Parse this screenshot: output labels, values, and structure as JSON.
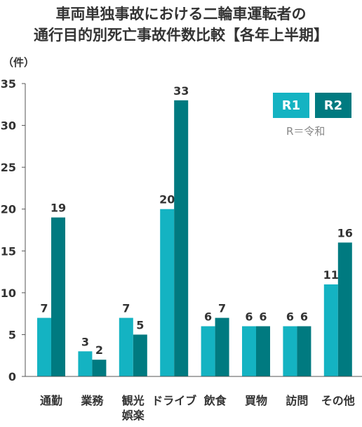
{
  "title_lines": [
    "車両単独事故における二輪車運転者の",
    "通行目的別死亡事故件数比較【各年上半期】"
  ],
  "unit": "（件）",
  "legend_note": "R＝令和",
  "colors": {
    "R1": "#14b3c2",
    "R2": "#007a80",
    "axis": "#555555"
  },
  "chart_data": {
    "type": "bar",
    "title": "車両単独事故における二輪車運転者の通行目的別死亡事故件数比較【各年上半期】",
    "ylabel": "（件）",
    "ylim": [
      0,
      35
    ],
    "yticks": [
      "0",
      "5",
      "10",
      "15",
      "20",
      "25",
      "30",
      "35"
    ],
    "grid": false,
    "legend_position": "top-right",
    "categories": [
      [
        "通勤"
      ],
      [
        "業務"
      ],
      [
        "観光",
        "娯楽"
      ],
      [
        "ドライブ"
      ],
      [
        "飲食"
      ],
      [
        "買物"
      ],
      [
        "訪問"
      ],
      [
        "その他"
      ]
    ],
    "series": [
      {
        "name": "R1",
        "values": [
          7,
          3,
          7,
          20,
          6,
          6,
          6,
          11
        ]
      },
      {
        "name": "R2",
        "values": [
          19,
          2,
          5,
          33,
          7,
          6,
          6,
          16
        ]
      }
    ]
  }
}
